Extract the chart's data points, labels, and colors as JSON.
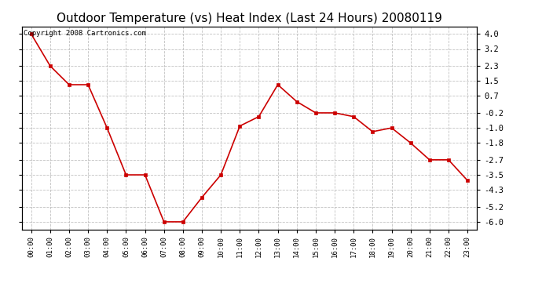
{
  "title": "Outdoor Temperature (vs) Heat Index (Last 24 Hours) 20080119",
  "copyright": "Copyright 2008 Cartronics.com",
  "x_labels": [
    "00:00",
    "01:00",
    "02:00",
    "03:00",
    "04:00",
    "05:00",
    "06:00",
    "07:00",
    "08:00",
    "09:00",
    "10:00",
    "11:00",
    "12:00",
    "13:00",
    "14:00",
    "15:00",
    "16:00",
    "17:00",
    "18:00",
    "19:00",
    "20:00",
    "21:00",
    "22:00",
    "23:00"
  ],
  "y_values": [
    4.0,
    2.3,
    1.3,
    1.3,
    -1.0,
    -3.5,
    -3.5,
    -6.0,
    -6.0,
    -4.7,
    -3.5,
    -0.9,
    -0.4,
    1.3,
    0.4,
    -0.2,
    -0.2,
    -0.4,
    -1.2,
    -1.0,
    -1.8,
    -2.7,
    -2.7,
    -3.8
  ],
  "yticks": [
    4.0,
    3.2,
    2.3,
    1.5,
    0.7,
    -0.2,
    -1.0,
    -1.8,
    -2.7,
    -3.5,
    -4.3,
    -5.2,
    -6.0
  ],
  "ytick_labels": [
    "4.0",
    "3.2",
    "2.3",
    "1.5",
    "0.7",
    "-0.2",
    "-1.0",
    "-1.8",
    "-2.7",
    "-3.5",
    "-4.3",
    "-5.2",
    "-6.0"
  ],
  "ylim": [
    -6.4,
    4.4
  ],
  "line_color": "#cc0000",
  "marker_color": "#cc0000",
  "bg_color": "#ffffff",
  "grid_color": "#bbbbbb",
  "title_fontsize": 11,
  "copyright_fontsize": 6.5
}
